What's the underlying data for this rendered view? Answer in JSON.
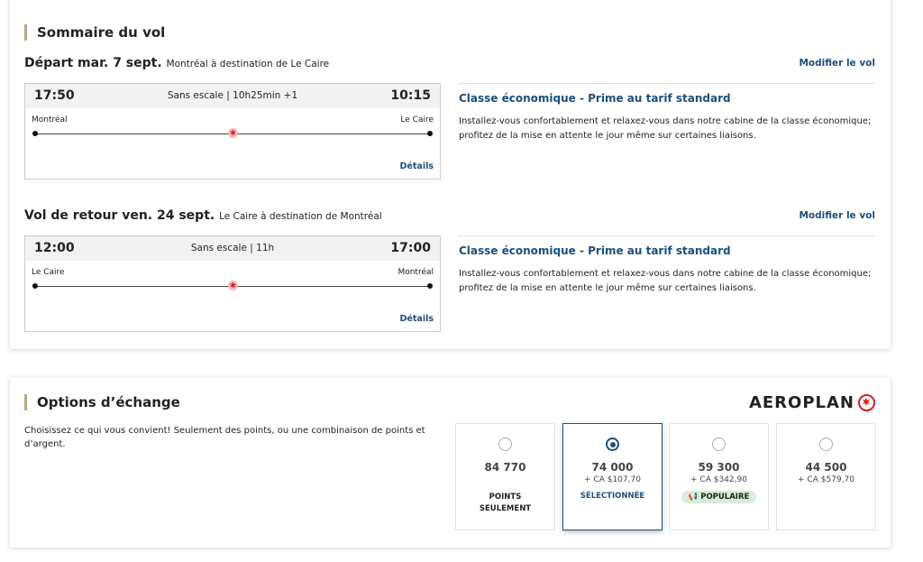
{
  "summary": {
    "title": "Sommaire du vol",
    "legs": [
      {
        "heading": "Départ mar. 7 sept.",
        "route": "Montréal à destination de Le Caire",
        "modify": "Modifier le vol",
        "dep_time": "17:50",
        "arr_time": "10:15",
        "info": "Sans escale | 10h25min +1",
        "from": "Montréal",
        "to": "Le Caire",
        "details": "Détails",
        "cabin": "Classe économique - Prime au tarif standard",
        "desc": "Installez-vous confortablement et relaxez-vous dans notre cabine de la classe économique; profitez de la mise en attente le jour même sur certaines liaisons."
      },
      {
        "heading": "Vol de retour ven. 24 sept.",
        "route": "Le Caire à destination de Montréal",
        "modify": "Modifier le vol",
        "dep_time": "12:00",
        "arr_time": "17:00",
        "info": "Sans escale | 11h",
        "from": "Le Caire",
        "to": "Montréal",
        "details": "Détails",
        "cabin": "Classe économique - Prime au tarif standard",
        "desc": "Installez-vous confortablement et relaxez-vous dans notre cabine de la classe économique; profitez de la mise en attente le jour même sur certaines liaisons."
      }
    ]
  },
  "exchange": {
    "title": "Options d’échange",
    "logo": "AEROPLAN",
    "intro": "Choisissez ce qui vous convient! Seulement des points, ou une combinaison de points et d’argent.",
    "options": [
      {
        "points": "84 770",
        "cash": "",
        "label": "POINTS SEULEMENT",
        "selected": false
      },
      {
        "points": "74 000",
        "cash": "+ CA $107,70",
        "label": "SÉLECTIONNÉE",
        "selected": true
      },
      {
        "points": "59 300",
        "cash": "+ CA $342,90",
        "badge": "POPULAIRE",
        "selected": false
      },
      {
        "points": "44 500",
        "cash": "+ CA $579,70",
        "selected": false
      }
    ]
  },
  "colors": {
    "accent": "#1d4f7c",
    "brand_red": "#d7191c",
    "badge_bg": "#d6eed9"
  }
}
